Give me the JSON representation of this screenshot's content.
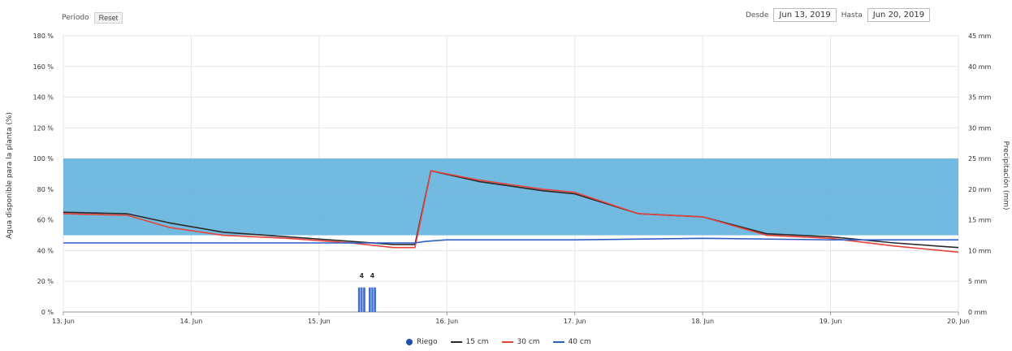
{
  "toolbar": {
    "periodo_label": "Periodo",
    "reset_label": "Reset",
    "desde_label": "Desde",
    "desde_value": "Jun 13, 2019",
    "hasta_label": "Hasta",
    "hasta_value": "Jun 20, 2019"
  },
  "chart_data": {
    "type": "line",
    "title": "",
    "ylabel": "Agua disponible para la planta (%)",
    "y2label": "Precipitación (mm)",
    "ylim": [
      0,
      180
    ],
    "y2lim": [
      0,
      45
    ],
    "yticks": [
      "0 %",
      "20 %",
      "40 %",
      "60 %",
      "80 %",
      "100 %",
      "120 %",
      "140 %",
      "160 %",
      "180 %"
    ],
    "y2ticks": [
      "0 mm",
      "5 mm",
      "10 mm",
      "15 mm",
      "20 mm",
      "25 mm",
      "30 mm",
      "35 mm",
      "40 mm",
      "45 mm"
    ],
    "xlim": [
      "2019-06-13",
      "2019-06-20"
    ],
    "xticks": [
      "13. Jun",
      "14. Jun",
      "15. Jun",
      "16. Jun",
      "17. Jun",
      "18. Jun",
      "19. Jun",
      "20. Jun"
    ],
    "band": {
      "from": 50,
      "to": 100,
      "color": "#5aaedc"
    },
    "grid": true,
    "legend_position": "bottom",
    "series": [
      {
        "name": "15 cm",
        "color": "#2a2a2a",
        "x": [
          "2019-06-13 00:00",
          "2019-06-13 12:00",
          "2019-06-13 20:00",
          "2019-06-14 06:00",
          "2019-06-14 18:00",
          "2019-06-15 06:00",
          "2019-06-15 14:00",
          "2019-06-15 18:00",
          "2019-06-15 21:00",
          "2019-06-16 06:00",
          "2019-06-16 18:00",
          "2019-06-17 00:00",
          "2019-06-17 12:00",
          "2019-06-18 00:00",
          "2019-06-18 12:00",
          "2019-06-19 00:00",
          "2019-06-19 12:00",
          "2019-06-20 00:00"
        ],
        "y": [
          65,
          64,
          58,
          52,
          49,
          46,
          44,
          44,
          92,
          85,
          79,
          77,
          64,
          62,
          51,
          49,
          45,
          42
        ]
      },
      {
        "name": "30 cm",
        "color": "#e8423a",
        "x": [
          "2019-06-13 00:00",
          "2019-06-13 12:00",
          "2019-06-13 20:00",
          "2019-06-14 06:00",
          "2019-06-14 18:00",
          "2019-06-15 06:00",
          "2019-06-15 14:00",
          "2019-06-15 18:00",
          "2019-06-15 21:00",
          "2019-06-16 06:00",
          "2019-06-16 18:00",
          "2019-06-17 00:00",
          "2019-06-17 12:00",
          "2019-06-18 00:00",
          "2019-06-18 12:00",
          "2019-06-19 00:00",
          "2019-06-19 12:00",
          "2019-06-20 00:00"
        ],
        "y": [
          64,
          63,
          55,
          50,
          48,
          45,
          42,
          42,
          92,
          86,
          80,
          78,
          64,
          62,
          50,
          48,
          43,
          39
        ]
      },
      {
        "name": "40 cm",
        "color": "#2f5fc4",
        "x": [
          "2019-06-13 00:00",
          "2019-06-14 00:00",
          "2019-06-15 00:00",
          "2019-06-15 12:00",
          "2019-06-15 18:00",
          "2019-06-15 20:00",
          "2019-06-16 00:00",
          "2019-06-17 00:00",
          "2019-06-18 00:00",
          "2019-06-19 00:00",
          "2019-06-20 00:00"
        ],
        "y": [
          45,
          45,
          45,
          45,
          45,
          46,
          47,
          47,
          48,
          47,
          47
        ]
      },
      {
        "name": "Riego",
        "color": "#2f5fc4",
        "kind": "bars",
        "axis": "y2",
        "x": [
          "2019-06-15 08:00",
          "2019-06-15 10:00"
        ],
        "y": [
          4,
          4
        ],
        "labels": [
          "4",
          "4"
        ]
      }
    ],
    "legend": [
      {
        "name": "Riego",
        "color": "#1f4fb0",
        "marker": "dot"
      },
      {
        "name": "15 cm",
        "color": "#2a2a2a",
        "marker": "line"
      },
      {
        "name": "30 cm",
        "color": "#e8423a",
        "marker": "line"
      },
      {
        "name": "40 cm",
        "color": "#2f5fc4",
        "marker": "line"
      }
    ]
  }
}
